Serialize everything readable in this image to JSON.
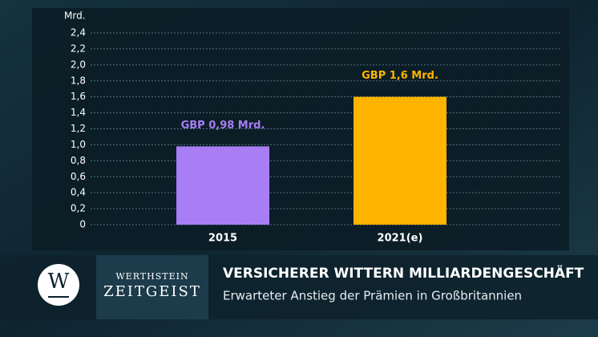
{
  "chart_data": {
    "type": "bar",
    "y_unit": "Mrd.",
    "categories": [
      "2015",
      "2021(e)"
    ],
    "values": [
      0.98,
      1.6
    ],
    "value_labels": [
      "GBP 0,98 Mrd.",
      "GBP 1,6 Mrd."
    ],
    "colors": [
      "#a97ef5",
      "#ffb400"
    ],
    "ylim": [
      0,
      2.4
    ],
    "yticks": [
      0,
      {
        "value": 0.2,
        "label": "0,2"
      },
      {
        "value": 0.4,
        "label": "0,4"
      },
      {
        "value": 0.6,
        "label": "0,6"
      },
      {
        "value": 0.8,
        "label": "0,8"
      },
      {
        "value": 1.0,
        "label": "1,0"
      },
      {
        "value": 1.2,
        "label": "1,2"
      },
      {
        "value": 1.4,
        "label": "1,4"
      },
      {
        "value": 1.6,
        "label": "1,6"
      },
      {
        "value": 1.8,
        "label": "1,8"
      },
      {
        "value": 2.0,
        "label": "2,0"
      },
      {
        "value": 2.2,
        "label": "2,2"
      },
      {
        "value": 2.4,
        "label": "2,4"
      }
    ],
    "grid": true
  },
  "footer": {
    "logo": "W",
    "brand_top": "Werthstein",
    "brand_bottom": "Zeitgeist",
    "headline": "VERSICHERER WITTERN MILLIARDENGESCHÄFT",
    "subline": "Erwarteter Anstieg der Prämien in Großbritannien"
  }
}
